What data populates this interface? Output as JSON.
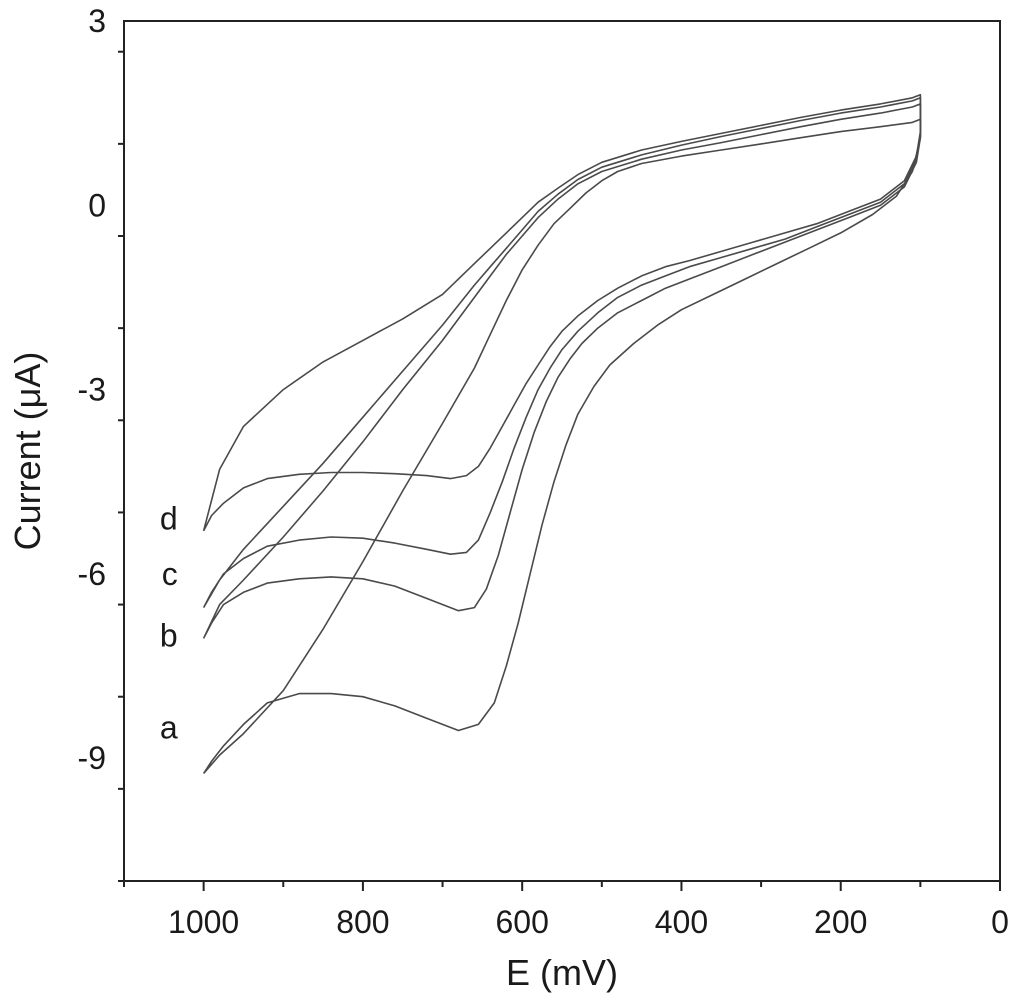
{
  "chart_data": {
    "type": "line",
    "title": "",
    "xlabel": "E (mV)",
    "ylabel": "Current (μA)",
    "xlim": [
      1100,
      0
    ],
    "ylim": [
      -11,
      3
    ],
    "x_reversed": true,
    "x_ticks": [
      1000,
      800,
      600,
      400,
      200,
      0
    ],
    "x_tick_labels": [
      "1000",
      "800",
      "600",
      "400",
      "200",
      "0"
    ],
    "x_minor_step": 100,
    "y_ticks": [
      3,
      0,
      -3,
      -6,
      -9
    ],
    "y_tick_labels": [
      "3",
      "0",
      "-3",
      "-6",
      "-9"
    ],
    "y_minor_step": 1.5,
    "grid": false,
    "legend": "none",
    "series": [
      {
        "name": "a",
        "label_position": {
          "E": 1020,
          "I": -8.5
        },
        "x": [
          1000,
          990,
          975,
          950,
          920,
          880,
          840,
          800,
          760,
          720,
          680,
          655,
          635,
          620,
          605,
          590,
          575,
          560,
          545,
          530,
          510,
          490,
          460,
          430,
          400,
          360,
          320,
          280,
          240,
          200,
          160,
          130,
          110,
          100,
          100,
          110,
          150,
          200,
          250,
          300,
          350,
          400,
          450,
          480,
          500,
          520,
          540,
          560,
          580,
          600,
          620,
          640,
          660,
          700,
          750,
          800,
          850,
          900,
          950,
          980,
          1000
        ],
        "y": [
          -9.25,
          -9.05,
          -8.8,
          -8.45,
          -8.1,
          -7.95,
          -7.95,
          -8.0,
          -8.15,
          -8.35,
          -8.55,
          -8.45,
          -8.1,
          -7.5,
          -6.8,
          -6.0,
          -5.2,
          -4.5,
          -3.9,
          -3.4,
          -2.95,
          -2.6,
          -2.25,
          -1.95,
          -1.7,
          -1.45,
          -1.2,
          -0.95,
          -0.7,
          -0.45,
          -0.15,
          0.15,
          0.55,
          1.1,
          1.4,
          1.35,
          1.28,
          1.2,
          1.1,
          1.0,
          0.9,
          0.8,
          0.68,
          0.55,
          0.4,
          0.2,
          -0.05,
          -0.3,
          -0.65,
          -1.05,
          -1.55,
          -2.1,
          -2.65,
          -3.55,
          -4.65,
          -5.8,
          -6.9,
          -7.9,
          -8.6,
          -8.95,
          -9.25
        ]
      },
      {
        "name": "b",
        "label_position": {
          "E": 1020,
          "I": -7.0
        },
        "x": [
          1000,
          990,
          975,
          950,
          920,
          880,
          840,
          800,
          760,
          720,
          680,
          660,
          645,
          630,
          615,
          600,
          585,
          570,
          555,
          540,
          525,
          505,
          480,
          450,
          420,
          390,
          350,
          310,
          270,
          230,
          190,
          150,
          120,
          105,
          100,
          100,
          110,
          150,
          200,
          250,
          300,
          350,
          400,
          450,
          500,
          530,
          555,
          580,
          600,
          620,
          640,
          660,
          700,
          750,
          800,
          850,
          900,
          950,
          980,
          1000
        ],
        "y": [
          -7.05,
          -6.8,
          -6.5,
          -6.3,
          -6.15,
          -6.08,
          -6.05,
          -6.08,
          -6.2,
          -6.4,
          -6.6,
          -6.55,
          -6.25,
          -5.7,
          -5.0,
          -4.3,
          -3.7,
          -3.2,
          -2.8,
          -2.5,
          -2.25,
          -2.0,
          -1.75,
          -1.55,
          -1.35,
          -1.2,
          -1.0,
          -0.8,
          -0.6,
          -0.4,
          -0.2,
          0.0,
          0.3,
          0.7,
          1.1,
          1.65,
          1.6,
          1.5,
          1.4,
          1.28,
          1.15,
          1.02,
          0.9,
          0.75,
          0.55,
          0.35,
          0.1,
          -0.2,
          -0.5,
          -0.8,
          -1.15,
          -1.5,
          -2.2,
          -3.0,
          -3.85,
          -4.65,
          -5.4,
          -6.1,
          -6.5,
          -7.05
        ]
      },
      {
        "name": "c",
        "label_position": {
          "E": 1020,
          "I": -6.0
        },
        "x": [
          1000,
          990,
          975,
          950,
          920,
          880,
          840,
          800,
          760,
          720,
          690,
          670,
          655,
          640,
          625,
          610,
          595,
          580,
          565,
          550,
          530,
          505,
          480,
          450,
          420,
          390,
          350,
          310,
          270,
          230,
          190,
          150,
          120,
          105,
          100,
          100,
          110,
          150,
          200,
          250,
          300,
          350,
          400,
          450,
          500,
          530,
          555,
          580,
          600,
          620,
          640,
          660,
          700,
          750,
          800,
          850,
          900,
          950,
          980,
          1000
        ],
        "y": [
          -6.55,
          -6.3,
          -6.0,
          -5.75,
          -5.55,
          -5.45,
          -5.4,
          -5.42,
          -5.5,
          -5.6,
          -5.68,
          -5.65,
          -5.45,
          -5.0,
          -4.5,
          -3.95,
          -3.45,
          -3.0,
          -2.65,
          -2.35,
          -2.05,
          -1.75,
          -1.5,
          -1.3,
          -1.15,
          -1.0,
          -0.85,
          -0.7,
          -0.55,
          -0.35,
          -0.15,
          0.05,
          0.35,
          0.75,
          1.15,
          1.75,
          1.7,
          1.6,
          1.5,
          1.38,
          1.25,
          1.12,
          0.98,
          0.82,
          0.62,
          0.42,
          0.18,
          -0.1,
          -0.4,
          -0.7,
          -1.0,
          -1.3,
          -1.95,
          -2.7,
          -3.45,
          -4.2,
          -4.9,
          -5.6,
          -6.1,
          -6.55
        ]
      },
      {
        "name": "d",
        "label_position": {
          "E": 1020,
          "I": -5.1
        },
        "x": [
          1000,
          990,
          975,
          950,
          920,
          880,
          840,
          800,
          760,
          720,
          690,
          670,
          655,
          640,
          625,
          610,
          595,
          580,
          565,
          550,
          530,
          505,
          480,
          450,
          420,
          390,
          350,
          310,
          270,
          230,
          190,
          150,
          120,
          105,
          100,
          100,
          110,
          150,
          200,
          250,
          300,
          350,
          400,
          450,
          500,
          530,
          555,
          580,
          600,
          620,
          640,
          660,
          700,
          750,
          800,
          850,
          900,
          950,
          980,
          1000
        ],
        "y": [
          -5.3,
          -5.05,
          -4.85,
          -4.6,
          -4.45,
          -4.38,
          -4.35,
          -4.35,
          -4.37,
          -4.4,
          -4.45,
          -4.4,
          -4.25,
          -3.95,
          -3.6,
          -3.25,
          -2.9,
          -2.6,
          -2.3,
          -2.05,
          -1.8,
          -1.55,
          -1.35,
          -1.15,
          -1.0,
          -0.9,
          -0.75,
          -0.6,
          -0.45,
          -0.3,
          -0.1,
          0.1,
          0.4,
          0.8,
          1.2,
          1.8,
          1.75,
          1.65,
          1.55,
          1.43,
          1.3,
          1.17,
          1.04,
          0.9,
          0.7,
          0.5,
          0.28,
          0.05,
          -0.2,
          -0.45,
          -0.7,
          -0.95,
          -1.45,
          -1.85,
          -2.2,
          -2.55,
          -3.0,
          -3.6,
          -4.3,
          -5.3
        ]
      }
    ]
  }
}
